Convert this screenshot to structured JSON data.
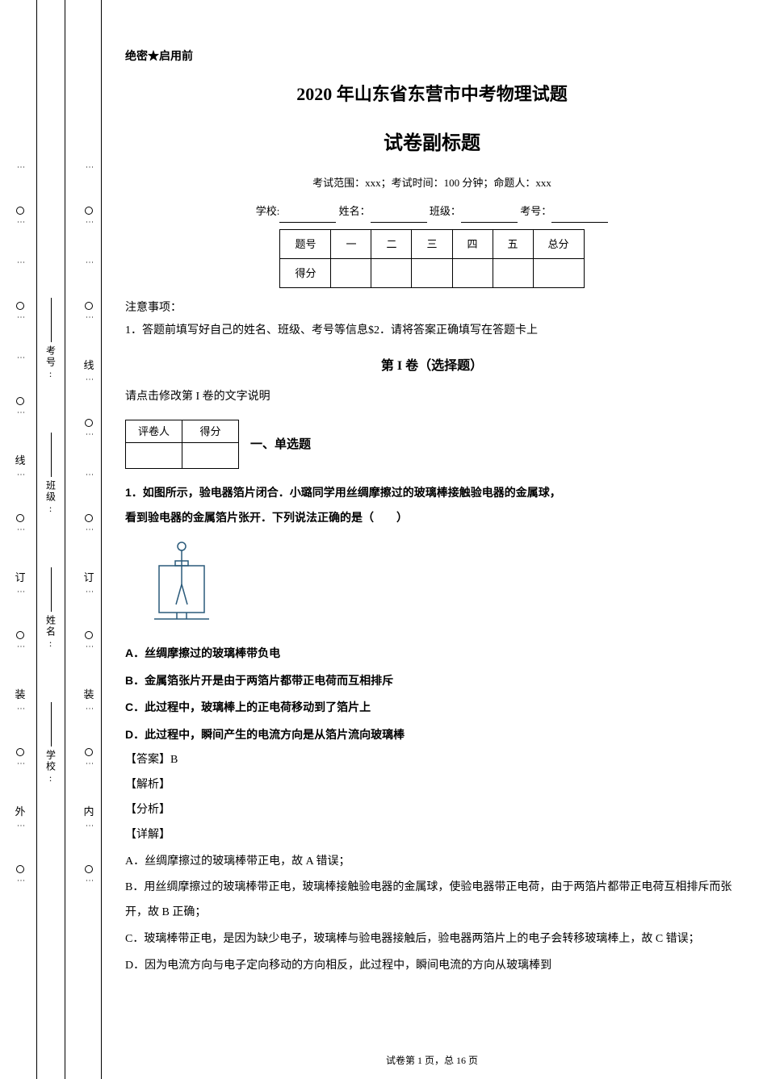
{
  "binding": {
    "outer_chars": [
      "外"
    ],
    "inner_chars": [
      "线",
      "订",
      "装",
      "内"
    ],
    "vlabels": [
      {
        "label": "考号:"
      },
      {
        "label": "班级:"
      },
      {
        "label": "姓名:"
      },
      {
        "label": "学校:"
      }
    ]
  },
  "header": {
    "confidential": "绝密★启用前",
    "title": "2020 年山东省东营市中考物理试题",
    "subtitle": "试卷副标题",
    "exam_info": "考试范围：xxx；考试时间：100 分钟；命题人：xxx",
    "fill_labels": {
      "school": "学校:",
      "name": "姓名：",
      "class": "班级：",
      "number": "考号："
    }
  },
  "score_table": {
    "row1": [
      "题号",
      "一",
      "二",
      "三",
      "四",
      "五",
      "总分"
    ],
    "row2_header": "得分"
  },
  "notice": {
    "title": "注意事项：",
    "items": [
      "1．答题前填写好自己的姓名、班级、考号等信息$2．请将答案正确填写在答题卡上"
    ]
  },
  "section1": {
    "title": "第 I 卷（选择题）",
    "note": "请点击修改第 I 卷的文字说明"
  },
  "grader": {
    "col1": "评卷人",
    "col2": "得分",
    "qtype": "一、单选题"
  },
  "question1": {
    "stem_line1": "1．如图所示，验电器箔片闭合．小璐同学用丝绸摩擦过的玻璃棒接触验电器的金属球，",
    "stem_line2": "看到验电器的金属箔片张开．下列说法正确的是（　　）",
    "options": {
      "A": "A．丝绸摩擦过的玻璃棒带负电",
      "B": "B．金属箔张片开是由于两箔片都带正电荷而互相排斥",
      "C": "C．此过程中，玻璃棒上的正电荷移动到了箔片上",
      "D": "D．此过程中，瞬间产生的电流方向是从箔片流向玻璃棒"
    },
    "answer_label": "【答案】",
    "answer": "B",
    "parse_label": "【解析】",
    "analysis_label": "【分析】",
    "detail_label": "【详解】",
    "explanations": [
      "A．丝绸摩擦过的玻璃棒带正电，故 A 错误；",
      "B．用丝绸摩擦过的玻璃棒带正电，玻璃棒接触验电器的金属球，使验电器带正电荷，由于两箔片都带正电荷互相排斥而张开，故 B 正确；",
      "C．玻璃棒带正电，是因为缺少电子，玻璃棒与验电器接触后，验电器两箔片上的电子会转移玻璃棒上，故 C 错误；",
      "D．因为电流方向与电子定向移动的方向相反，此过程中，瞬间电流的方向从玻璃棒到"
    ]
  },
  "footer": {
    "text": "试卷第 1 页，总 16 页"
  },
  "figure": {
    "stroke": "#2a5a7a",
    "width": 80,
    "height": 110
  }
}
